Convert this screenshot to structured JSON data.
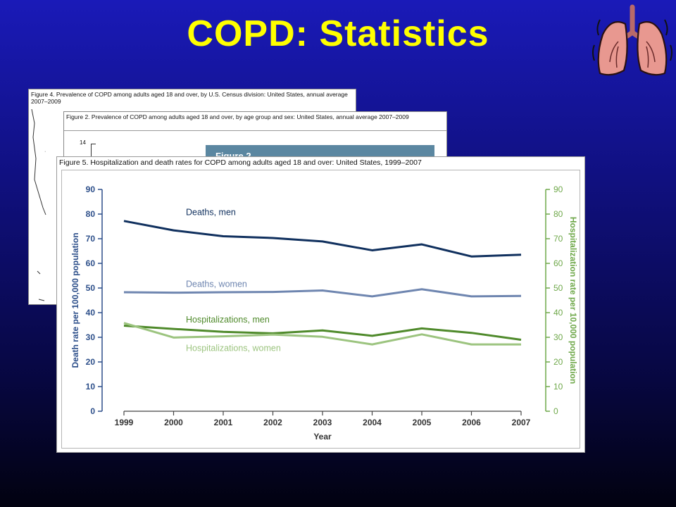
{
  "slide": {
    "title": "COPD:  Statistics"
  },
  "figure4": {
    "caption": "Figure 4. Prevalence of COPD among adults aged 18 and over, by U.S. Census division: United States, annual average 2007–2009"
  },
  "figure2": {
    "caption": "Figure 2. Prevalence of COPD among adults aged 18 and over, by age group and sex: United States, annual average 2007–2009",
    "visible_tick": "14",
    "banner_label": "Figure 2"
  },
  "figure5": {
    "caption": "Figure 5. Hospitalization and death rates for COPD among adults aged 18 and over: United States, 1999–2007"
  },
  "colors": {
    "deaths_men": "#10305e",
    "deaths_women": "#6f86b0",
    "hosp_men": "#4f8a2b",
    "hosp_women": "#9cc47f",
    "left_axis": "#2d4f8a",
    "right_axis": "#6fa84a"
  },
  "chart_data": {
    "type": "line",
    "title": "Figure 5. Hospitalization and death rates for COPD among adults aged 18 and over: United States, 1999–2007",
    "xlabel": "Year",
    "ylabel": "Death rate per 100,000 population",
    "y2label": "Hospitalization rate per 10,000 population",
    "x": [
      "1999",
      "2000",
      "2001",
      "2002",
      "2003",
      "2004",
      "2005",
      "2006",
      "2007"
    ],
    "ylim": [
      0,
      90
    ],
    "y2lim": [
      0,
      90
    ],
    "yticks": [
      0,
      10,
      20,
      30,
      40,
      50,
      60,
      70,
      80,
      90
    ],
    "grid": false,
    "series": [
      {
        "name": "Deaths, men",
        "axis": "left",
        "color": "#10305e",
        "values": [
          77.2,
          73.4,
          71.0,
          70.3,
          68.9,
          65.3,
          67.7,
          62.8,
          63.5
        ]
      },
      {
        "name": "Deaths, women",
        "axis": "left",
        "color": "#6f86b0",
        "values": [
          48.3,
          48.1,
          48.3,
          48.4,
          49.0,
          46.6,
          49.5,
          46.6,
          46.8
        ]
      },
      {
        "name": "Hospitalizations, men",
        "axis": "right",
        "color": "#4f8a2b",
        "values": [
          34.7,
          33.4,
          32.2,
          31.6,
          32.8,
          30.6,
          33.6,
          31.8,
          29.0
        ]
      },
      {
        "name": "Hospitalizations, women",
        "axis": "right",
        "color": "#9cc47f",
        "values": [
          35.8,
          29.9,
          30.4,
          31.1,
          30.2,
          27.1,
          31.2,
          27.1,
          27.1
        ]
      }
    ]
  }
}
